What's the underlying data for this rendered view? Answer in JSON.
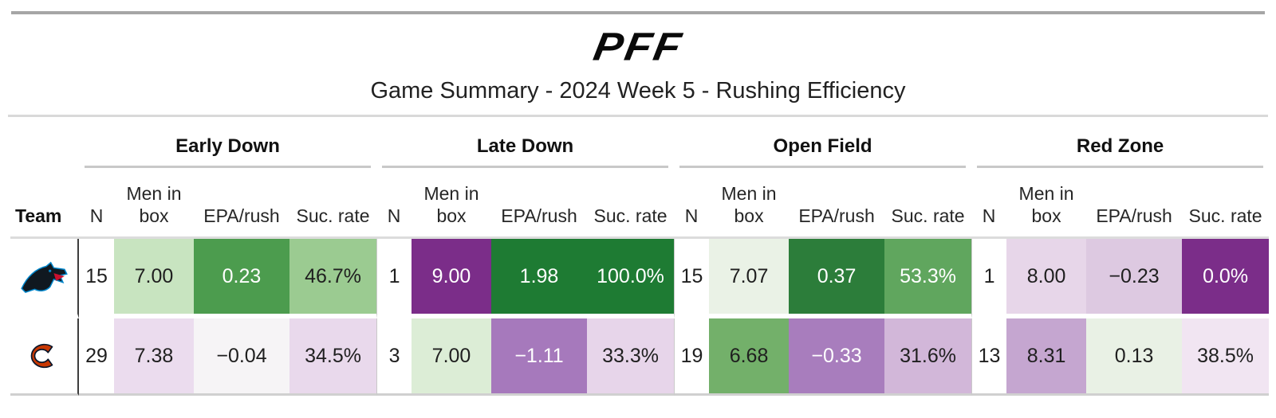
{
  "brand": {
    "logo_text": "PFF"
  },
  "page_title": "Game Summary - 2024 Week 5 - Rushing Efficiency",
  "table": {
    "team_header": "Team",
    "groups": [
      {
        "label": "Early Down"
      },
      {
        "label": "Late Down"
      },
      {
        "label": "Open Field"
      },
      {
        "label": "Red Zone"
      }
    ],
    "sub_columns": {
      "n": "N",
      "box_line1": "Men in",
      "box_line2": "box",
      "epa": "EPA/rush",
      "suc": "Suc. rate"
    },
    "rows": [
      {
        "team": "Carolina Panthers",
        "logo_icon": "panthers-logo",
        "cells": [
          {
            "text": "15",
            "bg": "#ffffff",
            "fg": "#1f1f1f"
          },
          {
            "text": "7.00",
            "bg": "#c8e4c0",
            "fg": "#1f1f1f"
          },
          {
            "text": "0.23",
            "bg": "#4c9c4e",
            "fg": "#ffffff"
          },
          {
            "text": "46.7%",
            "bg": "#9bcb91",
            "fg": "#1f1f1f"
          },
          {
            "text": "1",
            "bg": "#ffffff",
            "fg": "#1f1f1f"
          },
          {
            "text": "9.00",
            "bg": "#7b2d89",
            "fg": "#ffffff"
          },
          {
            "text": "1.98",
            "bg": "#1e7b33",
            "fg": "#ffffff"
          },
          {
            "text": "100.0%",
            "bg": "#1e7b33",
            "fg": "#ffffff"
          },
          {
            "text": "15",
            "bg": "#ffffff",
            "fg": "#1f1f1f"
          },
          {
            "text": "7.07",
            "bg": "#eaf2e6",
            "fg": "#1f1f1f"
          },
          {
            "text": "0.37",
            "bg": "#2c7d3a",
            "fg": "#ffffff"
          },
          {
            "text": "53.3%",
            "bg": "#60a65e",
            "fg": "#ffffff"
          },
          {
            "text": "1",
            "bg": "#ffffff",
            "fg": "#1f1f1f"
          },
          {
            "text": "8.00",
            "bg": "#e7d6e9",
            "fg": "#1f1f1f"
          },
          {
            "text": "−0.23",
            "bg": "#ddc9e1",
            "fg": "#1f1f1f"
          },
          {
            "text": "0.0%",
            "bg": "#7b2d89",
            "fg": "#ffffff"
          }
        ]
      },
      {
        "team": "Chicago Bears",
        "logo_icon": "bears-logo",
        "cells": [
          {
            "text": "29",
            "bg": "#ffffff",
            "fg": "#1f1f1f"
          },
          {
            "text": "7.38",
            "bg": "#ebdcee",
            "fg": "#1f1f1f"
          },
          {
            "text": "−0.04",
            "bg": "#f6f4f6",
            "fg": "#1f1f1f"
          },
          {
            "text": "34.5%",
            "bg": "#e9d9ec",
            "fg": "#1f1f1f"
          },
          {
            "text": "3",
            "bg": "#ffffff",
            "fg": "#1f1f1f"
          },
          {
            "text": "7.00",
            "bg": "#dcedd6",
            "fg": "#1f1f1f"
          },
          {
            "text": "−1.11",
            "bg": "#a679bc",
            "fg": "#ffffff"
          },
          {
            "text": "33.3%",
            "bg": "#e7d5ea",
            "fg": "#1f1f1f"
          },
          {
            "text": "19",
            "bg": "#ffffff",
            "fg": "#1f1f1f"
          },
          {
            "text": "6.68",
            "bg": "#73b06a",
            "fg": "#1f1f1f"
          },
          {
            "text": "−0.33",
            "bg": "#a87dbd",
            "fg": "#ffffff"
          },
          {
            "text": "31.6%",
            "bg": "#d2b7d9",
            "fg": "#1f1f1f"
          },
          {
            "text": "13",
            "bg": "#ffffff",
            "fg": "#1f1f1f"
          },
          {
            "text": "8.31",
            "bg": "#c5a6d0",
            "fg": "#1f1f1f"
          },
          {
            "text": "0.13",
            "bg": "#e9f1e5",
            "fg": "#1f1f1f"
          },
          {
            "text": "38.5%",
            "bg": "#f1e5f2",
            "fg": "#1f1f1f"
          }
        ]
      }
    ]
  },
  "colors": {
    "positive_scale": "green",
    "negative_scale": "purple",
    "dark_green": "#1e7b33",
    "dark_purple": "#7b2d89",
    "rule_gray": "#d9d9d9",
    "top_bar_gray": "#a6a6a6"
  },
  "chart_data": {
    "type": "table",
    "title": "Game Summary - 2024 Week 5 - Rushing Efficiency",
    "column_groups": [
      "Early Down",
      "Late Down",
      "Open Field",
      "Red Zone"
    ],
    "columns_per_group": [
      "N",
      "Men in box",
      "EPA/rush",
      "Suc. rate"
    ],
    "rows": [
      {
        "team": "Carolina Panthers",
        "early_down": {
          "n": 15,
          "men_in_box": 7.0,
          "epa_per_rush": 0.23,
          "success_rate_pct": 46.7
        },
        "late_down": {
          "n": 1,
          "men_in_box": 9.0,
          "epa_per_rush": 1.98,
          "success_rate_pct": 100.0
        },
        "open_field": {
          "n": 15,
          "men_in_box": 7.07,
          "epa_per_rush": 0.37,
          "success_rate_pct": 53.3
        },
        "red_zone": {
          "n": 1,
          "men_in_box": 8.0,
          "epa_per_rush": -0.23,
          "success_rate_pct": 0.0
        }
      },
      {
        "team": "Chicago Bears",
        "early_down": {
          "n": 29,
          "men_in_box": 7.38,
          "epa_per_rush": -0.04,
          "success_rate_pct": 34.5
        },
        "late_down": {
          "n": 3,
          "men_in_box": 7.0,
          "epa_per_rush": -1.11,
          "success_rate_pct": 33.3
        },
        "open_field": {
          "n": 19,
          "men_in_box": 6.68,
          "epa_per_rush": -0.33,
          "success_rate_pct": 31.6
        },
        "red_zone": {
          "n": 13,
          "men_in_box": 8.31,
          "epa_per_rush": 0.13,
          "success_rate_pct": 38.5
        }
      }
    ],
    "legend": "cell shading: green = good performance, purple = poor performance",
    "grid": false
  }
}
